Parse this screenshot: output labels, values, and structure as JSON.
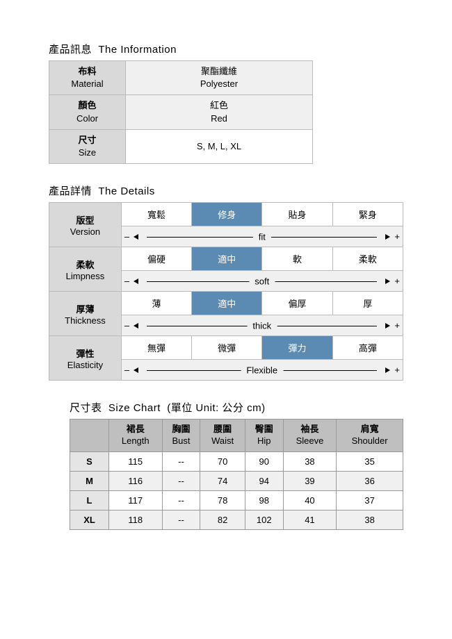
{
  "colors": {
    "header_bg": "#d9d9d9",
    "light_bg": "#f0f0f0",
    "selected_bg": "#5b8bb3",
    "size_header_bg": "#bfbfbf"
  },
  "information": {
    "title_zh": "產品訊息",
    "title_en": "The Information",
    "rows": [
      {
        "label_zh": "布料",
        "label_en": "Material",
        "value_zh": "聚酯纖維",
        "value_en": "Polyester",
        "bg": "light"
      },
      {
        "label_zh": "顏色",
        "label_en": "Color",
        "value_zh": "紅色",
        "value_en": "Red",
        "bg": "light"
      },
      {
        "label_zh": "尺寸",
        "label_en": "Size",
        "value_zh": "S, M, L, XL",
        "value_en": "",
        "bg": "white"
      }
    ]
  },
  "details": {
    "title_zh": "產品詳情",
    "title_en": "The Details",
    "rows": [
      {
        "label_zh": "版型",
        "label_en": "Version",
        "options": [
          "寬鬆",
          "修身",
          "貼身",
          "緊身"
        ],
        "selected_index": 1,
        "slider_label": "fit"
      },
      {
        "label_zh": "柔軟",
        "label_en": "Limpness",
        "options": [
          "偏硬",
          "適中",
          "軟",
          "柔軟"
        ],
        "selected_index": 1,
        "slider_label": "soft"
      },
      {
        "label_zh": "厚薄",
        "label_en": "Thickness",
        "options": [
          "薄",
          "適中",
          "偏厚",
          "厚"
        ],
        "selected_index": 1,
        "slider_label": "thick"
      },
      {
        "label_zh": "彈性",
        "label_en": "Elasticity",
        "options": [
          "無彈",
          "微彈",
          "彈力",
          "高彈"
        ],
        "selected_index": 2,
        "slider_label": "Flexible"
      }
    ],
    "minus": "–",
    "plus": "+"
  },
  "size_chart": {
    "title_zh": "尺寸表",
    "title_en": "Size Chart",
    "unit_label": "(單位 Unit: 公分 cm)",
    "columns": [
      {
        "zh": "裙長",
        "en": "Length"
      },
      {
        "zh": "胸圍",
        "en": "Bust"
      },
      {
        "zh": "腰圍",
        "en": "Waist"
      },
      {
        "zh": "臀圍",
        "en": "Hip"
      },
      {
        "zh": "袖長",
        "en": "Sleeve"
      },
      {
        "zh": "肩寬",
        "en": "Shoulder"
      }
    ],
    "rows": [
      {
        "size": "S",
        "cells": [
          "115",
          "--",
          "70",
          "90",
          "38",
          "35"
        ]
      },
      {
        "size": "M",
        "cells": [
          "116",
          "--",
          "74",
          "94",
          "39",
          "36"
        ]
      },
      {
        "size": "L",
        "cells": [
          "117",
          "--",
          "78",
          "98",
          "40",
          "37"
        ]
      },
      {
        "size": "XL",
        "cells": [
          "118",
          "--",
          "82",
          "102",
          "41",
          "38"
        ]
      }
    ]
  }
}
